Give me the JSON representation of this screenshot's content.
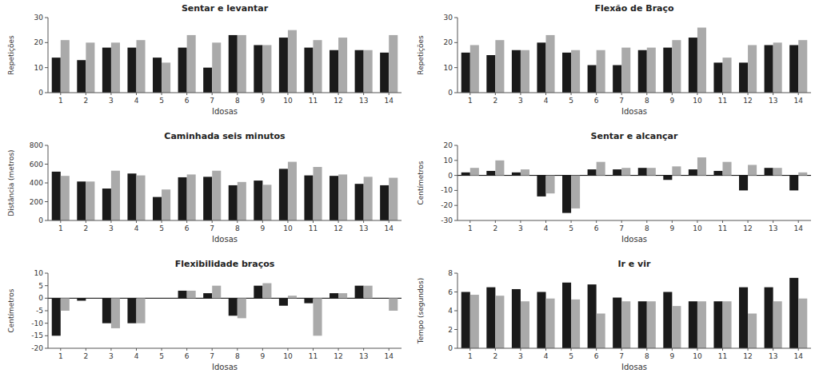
{
  "chart_data": [
    {
      "type": "bar",
      "title": "Sentar e levantar",
      "ylabel": "Repetições",
      "xlabel": "Idosas",
      "categories": [
        "1",
        "2",
        "3",
        "4",
        "5",
        "6",
        "7",
        "8",
        "9",
        "10",
        "11",
        "12",
        "13",
        "14"
      ],
      "series": [
        {
          "color": "#1a1a1a",
          "values": [
            14,
            13,
            18,
            18,
            14,
            18,
            10,
            23,
            19,
            22,
            18,
            17,
            17,
            16
          ]
        },
        {
          "color": "#aaaaaa",
          "values": [
            21,
            20,
            20,
            21,
            12,
            23,
            20,
            23,
            19,
            25,
            21,
            22,
            17,
            23
          ]
        }
      ],
      "ylim": [
        0,
        30
      ],
      "yticks": [
        0,
        10,
        20,
        30
      ]
    },
    {
      "type": "bar",
      "title": "Flexão de Braço",
      "ylabel": "Repetições",
      "xlabel": "Idosas",
      "categories": [
        "1",
        "2",
        "3",
        "4",
        "5",
        "6",
        "7",
        "8",
        "9",
        "10",
        "11",
        "12",
        "13",
        "14"
      ],
      "series": [
        {
          "color": "#1a1a1a",
          "values": [
            16,
            15,
            17,
            20,
            16,
            11,
            11,
            17,
            18,
            22,
            12,
            12,
            19,
            19
          ]
        },
        {
          "color": "#aaaaaa",
          "values": [
            19,
            21,
            17,
            23,
            17,
            17,
            18,
            18,
            21,
            26,
            14,
            19,
            20,
            21
          ]
        }
      ],
      "ylim": [
        0,
        30
      ],
      "yticks": [
        0,
        10,
        20,
        30
      ]
    },
    {
      "type": "bar",
      "title": "Caminhada seis minutos",
      "ylabel": "Distância (metros)",
      "xlabel": "Idosas",
      "categories": [
        "1",
        "2",
        "3",
        "4",
        "5",
        "6",
        "7",
        "8",
        "9",
        "10",
        "11",
        "12",
        "13",
        "14"
      ],
      "series": [
        {
          "color": "#1a1a1a",
          "values": [
            520,
            415,
            340,
            500,
            250,
            460,
            465,
            375,
            425,
            550,
            480,
            475,
            390,
            375
          ]
        },
        {
          "color": "#aaaaaa",
          "values": [
            475,
            415,
            530,
            480,
            330,
            490,
            530,
            410,
            380,
            625,
            570,
            490,
            465,
            455
          ]
        }
      ],
      "ylim": [
        0,
        800
      ],
      "yticks": [
        0,
        200,
        400,
        600,
        800
      ]
    },
    {
      "type": "bar",
      "title": "Sentar e alcançar",
      "ylabel": "Centímetros",
      "xlabel": "Idosas",
      "categories": [
        "1",
        "2",
        "3",
        "4",
        "5",
        "6",
        "7",
        "8",
        "9",
        "10",
        "11",
        "12",
        "13",
        "14"
      ],
      "series": [
        {
          "color": "#1a1a1a",
          "values": [
            2,
            3,
            2,
            -14,
            -25,
            4,
            4,
            5,
            -3,
            4,
            3,
            -10,
            5,
            -10
          ]
        },
        {
          "color": "#aaaaaa",
          "values": [
            5,
            10,
            4,
            -12,
            -22,
            9,
            5,
            5,
            6,
            12,
            9,
            7,
            5,
            2
          ]
        }
      ],
      "ylim": [
        -30,
        20
      ],
      "yticks": [
        -30,
        -20,
        -10,
        0,
        10,
        20
      ]
    },
    {
      "type": "bar",
      "title": "Flexibilidade braços",
      "ylabel": "Centímetros",
      "xlabel": "Idosas",
      "categories": [
        "1",
        "2",
        "3",
        "4",
        "5",
        "6",
        "7",
        "8",
        "9",
        "10",
        "11",
        "12",
        "13",
        "14"
      ],
      "series": [
        {
          "color": "#1a1a1a",
          "values": [
            -15,
            -1,
            -10,
            -10,
            0,
            3,
            2,
            -7,
            5,
            -3,
            -2,
            2,
            5,
            0
          ]
        },
        {
          "color": "#aaaaaa",
          "values": [
            -5,
            0,
            -12,
            -10,
            0,
            3,
            5,
            -8,
            6,
            1,
            -15,
            2,
            5,
            -5
          ]
        }
      ],
      "ylim": [
        -20,
        10
      ],
      "yticks": [
        -20,
        -15,
        -10,
        -5,
        0,
        5,
        10
      ]
    },
    {
      "type": "bar",
      "title": "Ir e vir",
      "ylabel": "Tempo (segundos)",
      "xlabel": "Idosas",
      "categories": [
        "1",
        "2",
        "3",
        "4",
        "5",
        "6",
        "7",
        "8",
        "9",
        "10",
        "11",
        "12",
        "13",
        "14"
      ],
      "series": [
        {
          "color": "#1a1a1a",
          "values": [
            6,
            6.5,
            6.3,
            6,
            7,
            6.8,
            5.4,
            5,
            6,
            5,
            5,
            6.5,
            6.5,
            7.5
          ]
        },
        {
          "color": "#aaaaaa",
          "values": [
            5.7,
            5.6,
            5,
            5.3,
            5.2,
            3.7,
            5,
            5,
            4.5,
            5,
            5,
            3.7,
            5,
            5.3
          ]
        }
      ],
      "ylim": [
        0,
        8
      ],
      "yticks": [
        0,
        2,
        4,
        6,
        8
      ]
    }
  ]
}
